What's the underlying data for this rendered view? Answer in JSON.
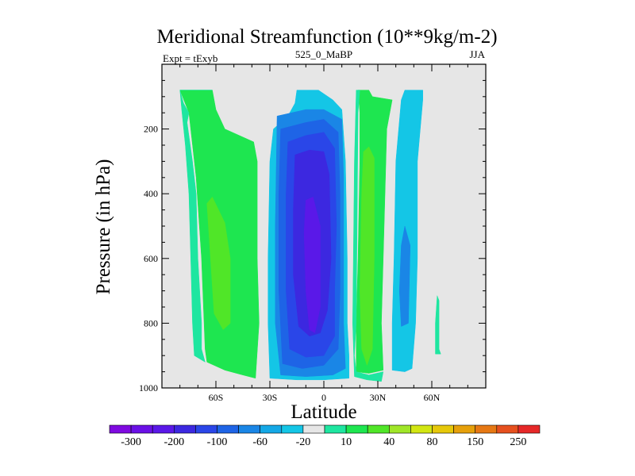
{
  "chart_data": {
    "type": "heatmap",
    "title": "Meridional Streamfunction (10**9kg/m-2)",
    "left_string": "Expt = tExyb",
    "center_string": "525_0_MaBP",
    "right_string": "JJA",
    "xlabel": "Latitude",
    "ylabel": "Pressure (in hPa)",
    "xlim": [
      -90,
      90
    ],
    "ylim": [
      1000,
      0
    ],
    "x_ticks": [
      {
        "value": -60,
        "label": "60S"
      },
      {
        "value": -30,
        "label": "30S"
      },
      {
        "value": 0,
        "label": "0"
      },
      {
        "value": 30,
        "label": "30N"
      },
      {
        "value": 60,
        "label": "60N"
      }
    ],
    "y_ticks": [
      {
        "value": 200,
        "label": "200"
      },
      {
        "value": 400,
        "label": "400"
      },
      {
        "value": 600,
        "label": "600"
      },
      {
        "value": 800,
        "label": "800"
      },
      {
        "value": 1000,
        "label": "1000"
      }
    ],
    "missing_color": "#e6e6e6",
    "colorbar": {
      "colors": [
        "#7f0ae0",
        "#6a10e6",
        "#5a18e8",
        "#3c28e0",
        "#2a46e8",
        "#1e64e6",
        "#1a86e6",
        "#14a8e6",
        "#14c6e6",
        "#e6e6e6",
        "#1ee6a0",
        "#1ee650",
        "#50e628",
        "#a0e628",
        "#d2e612",
        "#e6c80a",
        "#e6a00a",
        "#e67814",
        "#e6501e",
        "#e62828"
      ],
      "labels": [
        {
          "boundary": 1,
          "text": "-300"
        },
        {
          "boundary": 3,
          "text": "-200"
        },
        {
          "boundary": 5,
          "text": "-100"
        },
        {
          "boundary": 7,
          "text": "-60"
        },
        {
          "boundary": 9,
          "text": "-20"
        },
        {
          "boundary": 11,
          "text": "10"
        },
        {
          "boundary": 13,
          "text": "40"
        },
        {
          "boundary": 15,
          "text": "80"
        },
        {
          "boundary": 17,
          "text": "150"
        },
        {
          "boundary": 19,
          "text": "250"
        }
      ]
    },
    "fields": [
      {
        "name": "NH cyan cell",
        "color": "#14c6e6",
        "polygon": [
          [
            45,
            80
          ],
          [
            55,
            80
          ],
          [
            55,
            110
          ],
          [
            52,
            300
          ],
          [
            52,
            600
          ],
          [
            51,
            800
          ],
          [
            49,
            940
          ],
          [
            45,
            950
          ],
          [
            38,
            945
          ],
          [
            38,
            800
          ],
          [
            39,
            600
          ],
          [
            40,
            300
          ],
          [
            43,
            110
          ],
          [
            45,
            80
          ]
        ]
      },
      {
        "name": "NH blue core",
        "color": "#1a86e6",
        "polygon": [
          [
            45,
            500
          ],
          [
            48,
            560
          ],
          [
            47,
            800
          ],
          [
            43,
            810
          ],
          [
            42,
            700
          ],
          [
            43,
            560
          ],
          [
            45,
            500
          ]
        ]
      },
      {
        "name": "SH outer green",
        "color": "#1ee650",
        "polygon": [
          [
            -80,
            80
          ],
          [
            -62,
            80
          ],
          [
            -60,
            140
          ],
          [
            -55,
            200
          ],
          [
            -39,
            240
          ],
          [
            -37,
            300
          ],
          [
            -37,
            600
          ],
          [
            -36,
            800
          ],
          [
            -38,
            970
          ],
          [
            -45,
            960
          ],
          [
            -55,
            945
          ],
          [
            -65,
            920
          ],
          [
            -66,
            880
          ],
          [
            -68,
            600
          ],
          [
            -71,
            350
          ],
          [
            -75,
            150
          ],
          [
            -80,
            80
          ]
        ]
      },
      {
        "name": "SH outer light green",
        "color": "#50e628",
        "polygon": [
          [
            -65,
            430
          ],
          [
            -62,
            410
          ],
          [
            -55,
            490
          ],
          [
            -52,
            600
          ],
          [
            -52,
            800
          ],
          [
            -56,
            820
          ],
          [
            -61,
            770
          ],
          [
            -63,
            600
          ],
          [
            -65,
            430
          ]
        ]
      },
      {
        "name": "NH equatorward green",
        "color": "#1ee650",
        "polygon": [
          [
            19,
            80
          ],
          [
            25,
            80
          ],
          [
            27,
            100
          ],
          [
            38,
            110
          ],
          [
            35,
            200
          ],
          [
            33,
            600
          ],
          [
            32,
            800
          ],
          [
            33,
            945
          ],
          [
            25,
            955
          ],
          [
            18,
            950
          ],
          [
            18,
            800
          ],
          [
            19,
            600
          ],
          [
            20,
            300
          ],
          [
            20,
            150
          ],
          [
            19,
            80
          ]
        ]
      },
      {
        "name": "NH equatorward light green",
        "color": "#50e628",
        "polygon": [
          [
            22,
            270
          ],
          [
            25,
            255
          ],
          [
            28,
            290
          ],
          [
            28,
            600
          ],
          [
            27,
            880
          ],
          [
            24,
            930
          ],
          [
            21,
            880
          ],
          [
            20,
            700
          ],
          [
            21,
            400
          ],
          [
            22,
            270
          ]
        ]
      },
      {
        "name": "Equatorial cell outer",
        "color": "#14c6e6",
        "polygon": [
          [
            -15,
            80
          ],
          [
            -3,
            80
          ],
          [
            5,
            110
          ],
          [
            10,
            140
          ],
          [
            12,
            300
          ],
          [
            13,
            600
          ],
          [
            13,
            800
          ],
          [
            14,
            900
          ],
          [
            14,
            970
          ],
          [
            0,
            975
          ],
          [
            -15,
            975
          ],
          [
            -30,
            970
          ],
          [
            -31,
            800
          ],
          [
            -31,
            600
          ],
          [
            -30,
            300
          ],
          [
            -28,
            200
          ],
          [
            -20,
            160
          ],
          [
            -16,
            120
          ],
          [
            -15,
            80
          ]
        ]
      },
      {
        "name": "Equatorial cell 1",
        "color": "#1a86e6",
        "polygon": [
          [
            -26,
            160
          ],
          [
            -10,
            140
          ],
          [
            0,
            140
          ],
          [
            10,
            170
          ],
          [
            11,
            350
          ],
          [
            11,
            800
          ],
          [
            12,
            940
          ],
          [
            5,
            960
          ],
          [
            -10,
            965
          ],
          [
            -24,
            960
          ],
          [
            -27,
            800
          ],
          [
            -27,
            500
          ],
          [
            -26,
            160
          ]
        ]
      },
      {
        "name": "Equatorial cell 2",
        "color": "#1e64e6",
        "polygon": [
          [
            -24,
            200
          ],
          [
            -10,
            180
          ],
          [
            0,
            170
          ],
          [
            8,
            210
          ],
          [
            9,
            400
          ],
          [
            9,
            700
          ],
          [
            8,
            880
          ],
          [
            0,
            930
          ],
          [
            -12,
            940
          ],
          [
            -23,
            925
          ],
          [
            -25,
            700
          ],
          [
            -25,
            400
          ],
          [
            -24,
            200
          ]
        ]
      },
      {
        "name": "Equatorial cell 3",
        "color": "#2a46e8",
        "polygon": [
          [
            -20,
            240
          ],
          [
            -10,
            220
          ],
          [
            0,
            210
          ],
          [
            6,
            260
          ],
          [
            7,
            500
          ],
          [
            6,
            700
          ],
          [
            6,
            840
          ],
          [
            0,
            900
          ],
          [
            -10,
            905
          ],
          [
            -19,
            880
          ],
          [
            -21,
            700
          ],
          [
            -21,
            400
          ],
          [
            -20,
            240
          ]
        ]
      },
      {
        "name": "Equatorial cell 4",
        "color": "#3c28e0",
        "polygon": [
          [
            -16,
            280
          ],
          [
            -8,
            265
          ],
          [
            0,
            270
          ],
          [
            3,
            340
          ],
          [
            4,
            600
          ],
          [
            2,
            760
          ],
          [
            -2,
            830
          ],
          [
            -8,
            840
          ],
          [
            -14,
            810
          ],
          [
            -17,
            650
          ],
          [
            -17,
            450
          ],
          [
            -16,
            280
          ]
        ]
      },
      {
        "name": "Equatorial cell 5",
        "color": "#5a18e8",
        "polygon": [
          [
            -10,
            420
          ],
          [
            -6,
            410
          ],
          [
            -2,
            500
          ],
          [
            -2,
            750
          ],
          [
            -5,
            830
          ],
          [
            -8,
            820
          ],
          [
            -10,
            700
          ],
          [
            -11,
            520
          ],
          [
            -10,
            420
          ]
        ]
      },
      {
        "name": "SH outer cyan fringe",
        "color": "#1ee6a0",
        "polygon": [
          [
            -62,
            80
          ],
          [
            -80,
            80
          ],
          [
            -78,
            120
          ],
          [
            -75,
            150
          ],
          [
            -76,
            180
          ],
          [
            -73,
            300
          ],
          [
            -71,
            400
          ],
          [
            -70,
            600
          ],
          [
            -68,
            800
          ],
          [
            -68,
            880
          ],
          [
            -66,
            920
          ],
          [
            -72,
            900
          ],
          [
            -73,
            800
          ],
          [
            -74,
            600
          ],
          [
            -75,
            400
          ],
          [
            -77,
            250
          ],
          [
            -79,
            140
          ],
          [
            -80,
            80
          ]
        ]
      },
      {
        "name": "NH outer fringe",
        "color": "#1ee6a0",
        "polygon": [
          [
            63,
            715
          ],
          [
            64,
            730
          ],
          [
            64,
            880
          ],
          [
            65,
            895
          ],
          [
            62,
            895
          ],
          [
            62,
            800
          ],
          [
            63,
            715
          ]
        ]
      },
      {
        "name": "NH mid-lat cell fringe",
        "color": "#1ee6a0",
        "polygon": [
          [
            18,
            80
          ],
          [
            20,
            80
          ],
          [
            19,
            150
          ],
          [
            18,
            800
          ],
          [
            17,
            900
          ],
          [
            18,
            950
          ],
          [
            25,
            960
          ],
          [
            33,
            950
          ],
          [
            32,
            980
          ],
          [
            24,
            975
          ],
          [
            17,
            965
          ],
          [
            16,
            800
          ],
          [
            17,
            300
          ],
          [
            18,
            80
          ]
        ]
      }
    ]
  }
}
